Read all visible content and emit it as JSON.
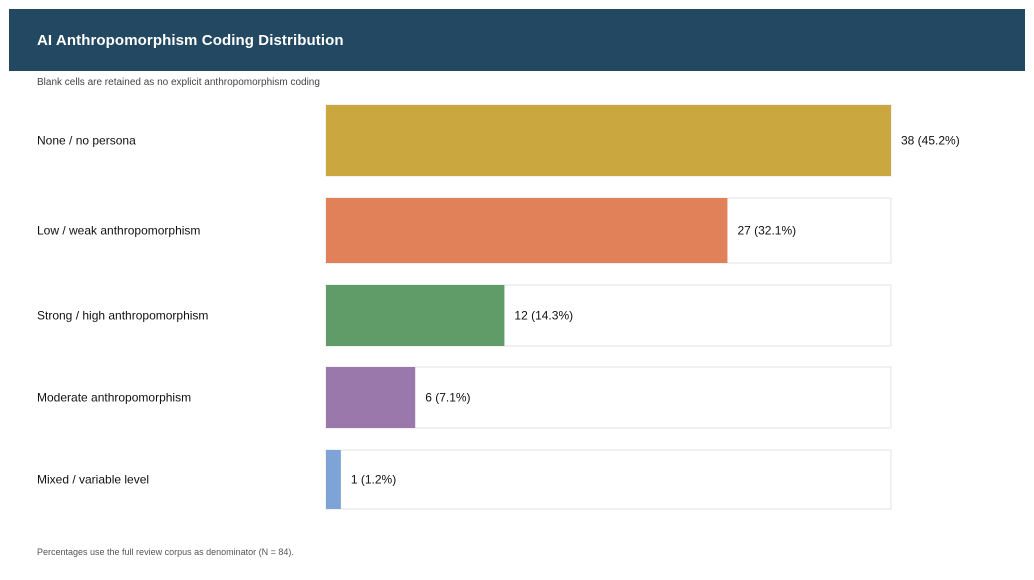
{
  "chart_data": {
    "type": "bar",
    "orientation": "horizontal",
    "title": "AI Anthropomorphism Coding Distribution",
    "subtitle": "Blank cells are retained as no explicit anthropomorphism coding",
    "footnote": "Percentages use the full review corpus as denominator (N = 84).",
    "categories": [
      "None / no persona",
      "Low / weak anthropomorphism",
      "Strong / high anthropomorphism",
      "Moderate anthropomorphism",
      "Mixed / variable level"
    ],
    "values": [
      38,
      27,
      12,
      6,
      1
    ],
    "value_labels": [
      "38 (45.2%)",
      "27 (32.1%)",
      "12 (14.3%)",
      "6 (7.1%)",
      "1 (1.2%)"
    ],
    "colors": [
      "#cba740",
      "#e0815a",
      "#5f9c67",
      "#9b78ab",
      "#7ea3d6"
    ],
    "xlim": [
      0,
      38
    ],
    "grid": false,
    "legend": "none"
  }
}
